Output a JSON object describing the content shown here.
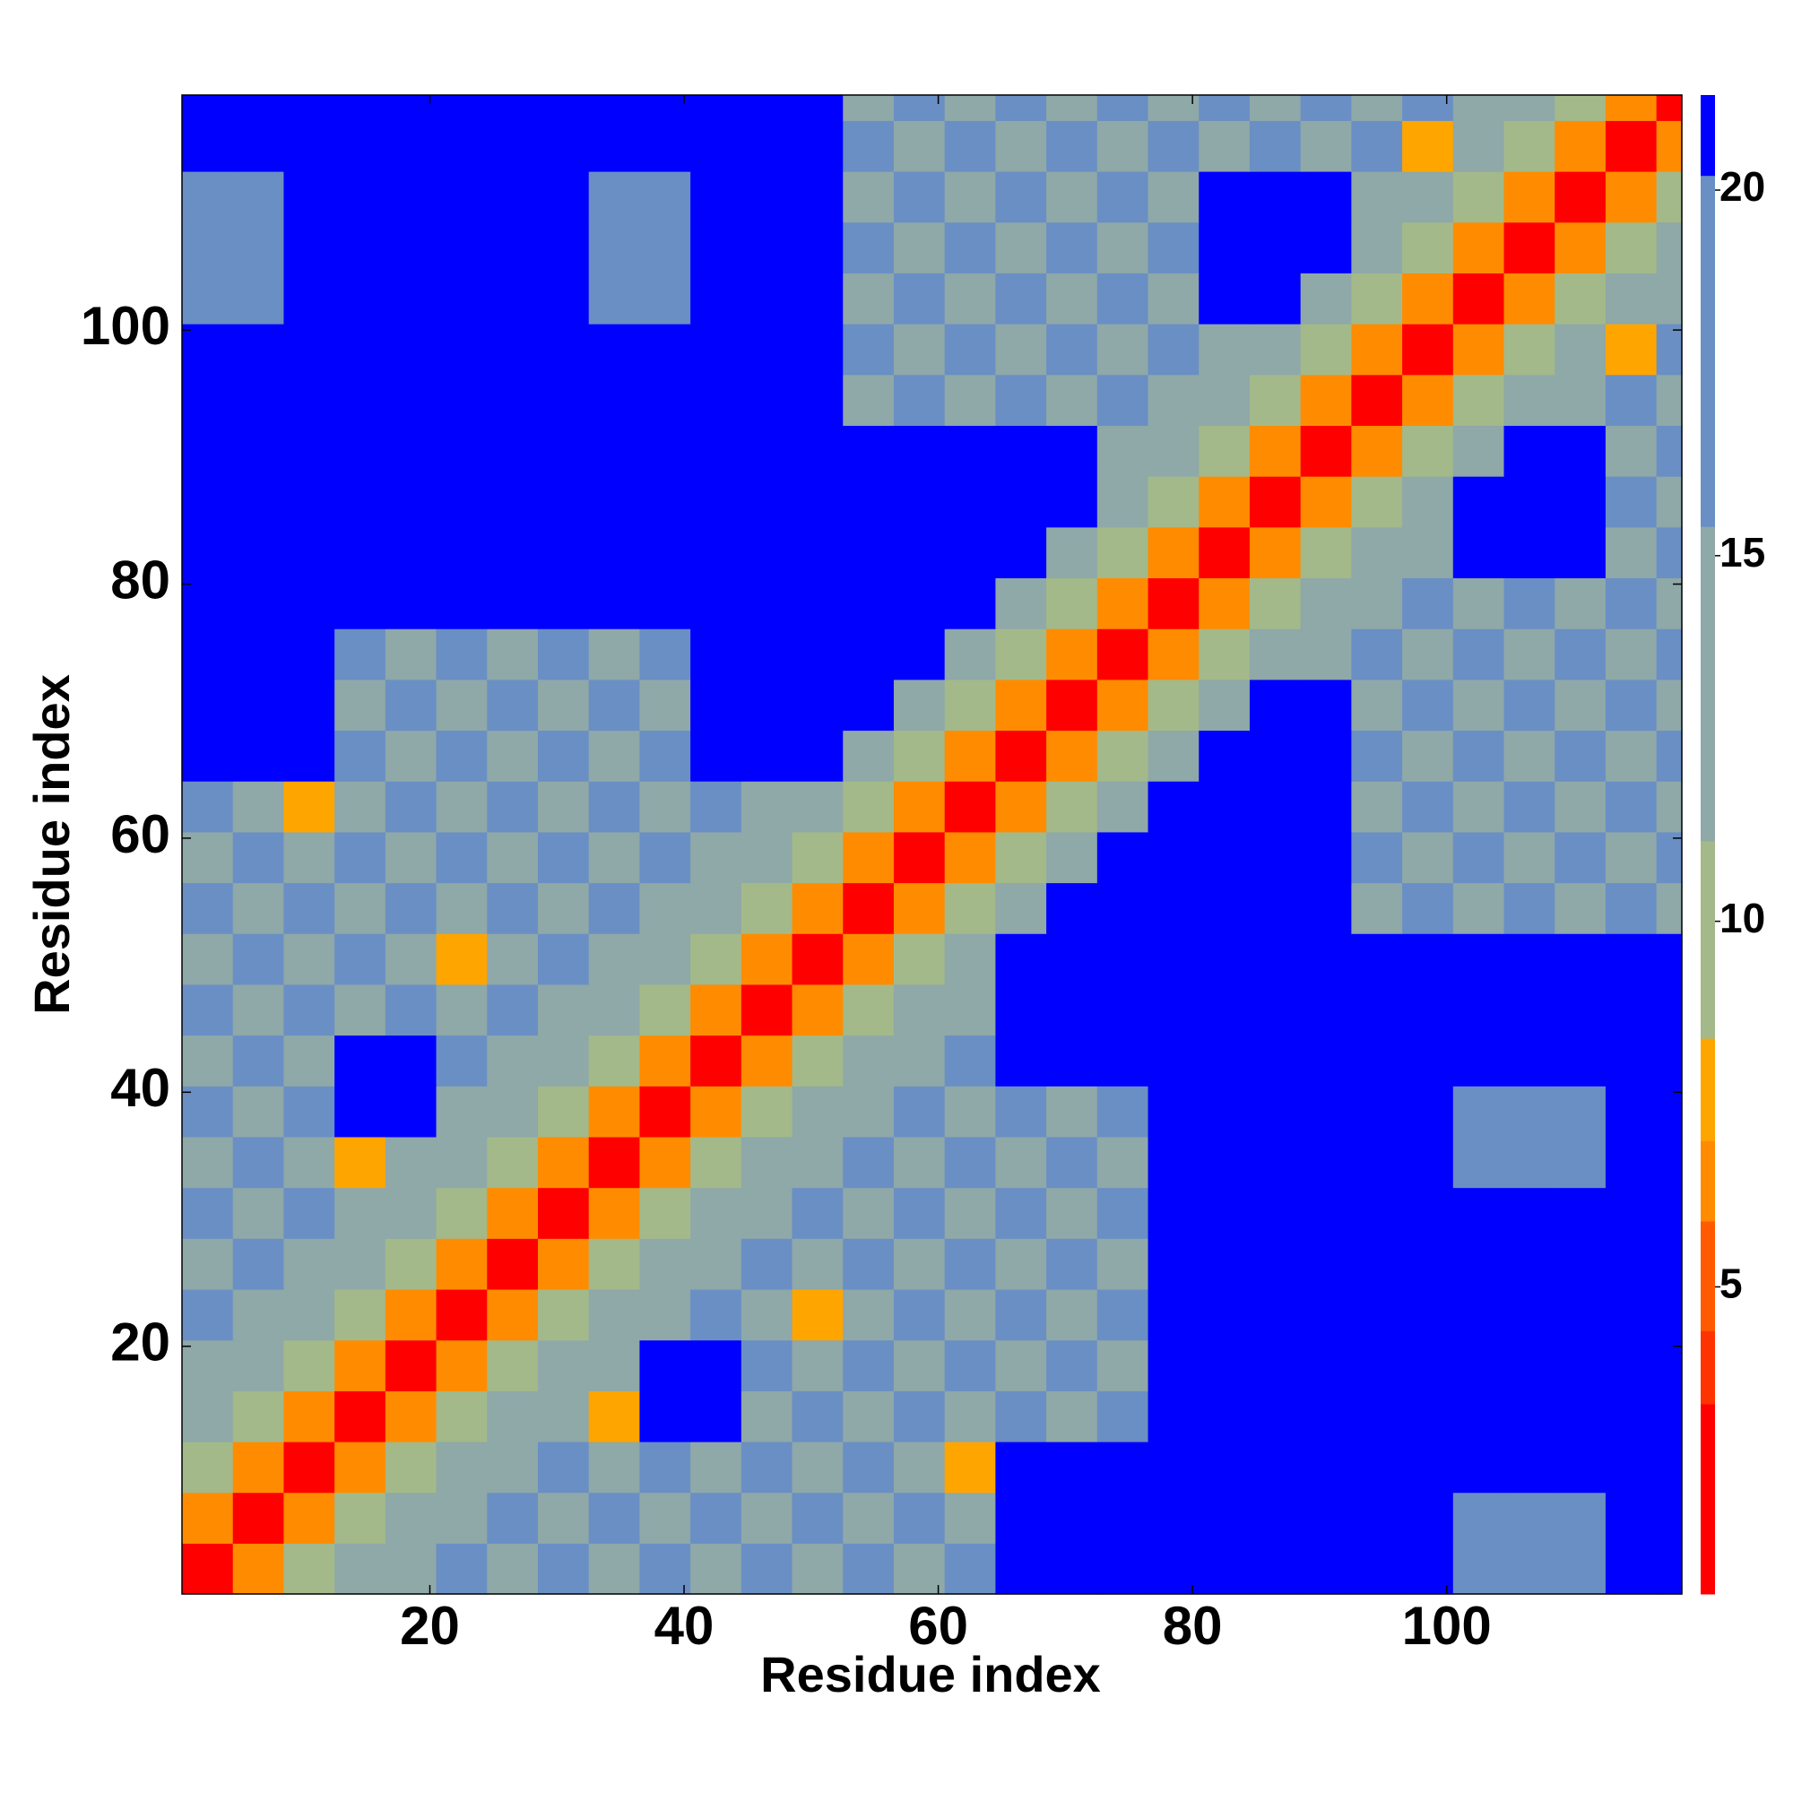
{
  "chart_data": {
    "type": "heatmap",
    "xlabel": "Residue index",
    "ylabel": "Residue index",
    "xlim": [
      0.5,
      118.5
    ],
    "ylim": [
      0.5,
      118.5
    ],
    "xticks": [
      20,
      40,
      60,
      80,
      100
    ],
    "yticks": [
      20,
      40,
      60,
      80,
      100
    ],
    "x_edges": [
      0.5,
      4.5,
      8.5,
      12.5,
      16.5,
      20.5,
      24.5,
      28.5,
      32.5,
      36.5,
      40.5,
      44.5,
      48.5,
      52.5,
      56.5,
      60.5,
      64.5,
      68.5,
      72.5,
      76.5,
      80.5,
      84.5,
      88.5,
      92.5,
      96.5,
      100.5,
      104.5,
      108.5,
      112.5,
      116.5,
      118.5
    ],
    "y_edges": [
      0.5,
      4.5,
      8.5,
      12.5,
      16.5,
      20.5,
      24.5,
      28.5,
      32.5,
      36.5,
      40.5,
      44.5,
      48.5,
      52.5,
      56.5,
      60.5,
      64.5,
      68.5,
      72.5,
      76.5,
      80.5,
      84.5,
      88.5,
      92.5,
      96.5,
      100.5,
      104.5,
      108.5,
      112.5,
      116.5,
      118.5
    ],
    "z": [
      [
        2,
        6,
        10,
        13,
        15,
        17,
        15,
        17,
        15,
        17,
        15,
        17,
        15,
        17,
        15,
        17,
        21,
        21,
        21,
        21,
        21,
        21,
        21,
        21,
        21,
        18,
        18,
        18,
        21,
        21
      ],
      [
        6,
        2,
        6,
        10,
        13,
        15,
        17,
        15,
        17,
        15,
        17,
        15,
        17,
        15,
        17,
        15,
        21,
        21,
        21,
        21,
        21,
        21,
        21,
        21,
        21,
        18,
        18,
        18,
        21,
        21
      ],
      [
        10,
        6,
        2,
        6,
        10,
        13,
        15,
        17,
        15,
        17,
        15,
        17,
        15,
        17,
        15,
        8,
        21,
        21,
        21,
        21,
        21,
        21,
        21,
        21,
        21,
        21,
        21,
        21,
        21,
        21
      ],
      [
        13,
        10,
        6,
        2,
        6,
        10,
        13,
        15,
        8,
        21,
        21,
        15,
        17,
        15,
        17,
        15,
        17,
        15,
        17,
        21,
        21,
        21,
        21,
        21,
        21,
        21,
        21,
        21,
        21,
        21
      ],
      [
        15,
        13,
        10,
        6,
        2,
        6,
        10,
        13,
        15,
        21,
        21,
        17,
        15,
        17,
        15,
        17,
        15,
        17,
        15,
        21,
        21,
        21,
        21,
        21,
        21,
        21,
        21,
        21,
        21,
        21
      ],
      [
        17,
        15,
        13,
        10,
        6,
        2,
        6,
        10,
        13,
        15,
        17,
        15,
        8,
        15,
        17,
        15,
        17,
        15,
        17,
        21,
        21,
        21,
        21,
        21,
        21,
        21,
        21,
        21,
        21,
        21
      ],
      [
        15,
        17,
        15,
        13,
        10,
        6,
        2,
        6,
        10,
        13,
        15,
        17,
        15,
        17,
        15,
        17,
        15,
        17,
        15,
        21,
        21,
        21,
        21,
        21,
        21,
        21,
        21,
        21,
        21,
        21
      ],
      [
        17,
        15,
        17,
        15,
        13,
        10,
        6,
        2,
        6,
        10,
        13,
        15,
        17,
        15,
        17,
        15,
        17,
        15,
        17,
        21,
        21,
        21,
        21,
        21,
        21,
        21,
        21,
        21,
        21,
        21
      ],
      [
        15,
        17,
        15,
        8,
        15,
        13,
        10,
        6,
        2,
        6,
        10,
        13,
        15,
        17,
        15,
        17,
        15,
        17,
        15,
        21,
        21,
        21,
        21,
        21,
        21,
        16,
        16,
        16,
        21,
        21
      ],
      [
        17,
        15,
        17,
        21,
        21,
        15,
        13,
        10,
        6,
        2,
        6,
        10,
        13,
        15,
        17,
        15,
        17,
        15,
        17,
        21,
        21,
        21,
        21,
        21,
        21,
        16,
        16,
        16,
        21,
        21
      ],
      [
        15,
        17,
        15,
        21,
        21,
        17,
        15,
        13,
        10,
        6,
        2,
        6,
        10,
        13,
        15,
        17,
        21,
        21,
        21,
        21,
        21,
        21,
        21,
        21,
        21,
        21,
        21,
        21,
        21,
        21
      ],
      [
        17,
        15,
        17,
        15,
        17,
        15,
        17,
        15,
        13,
        10,
        6,
        2,
        6,
        10,
        13,
        15,
        21,
        21,
        21,
        21,
        21,
        21,
        21,
        21,
        21,
        21,
        21,
        21,
        21,
        21
      ],
      [
        15,
        17,
        15,
        17,
        15,
        8,
        15,
        17,
        15,
        13,
        10,
        6,
        2,
        6,
        10,
        13,
        21,
        21,
        21,
        21,
        21,
        21,
        21,
        21,
        21,
        21,
        21,
        21,
        21,
        21
      ],
      [
        17,
        15,
        17,
        15,
        17,
        15,
        17,
        15,
        17,
        15,
        13,
        10,
        6,
        2,
        6,
        10,
        13,
        21,
        21,
        21,
        21,
        21,
        21,
        15,
        17,
        15,
        17,
        15,
        17,
        15
      ],
      [
        15,
        17,
        15,
        17,
        15,
        17,
        15,
        17,
        15,
        17,
        15,
        13,
        10,
        6,
        2,
        6,
        10,
        13,
        21,
        21,
        21,
        21,
        21,
        17,
        15,
        17,
        15,
        17,
        15,
        17
      ],
      [
        17,
        15,
        8,
        15,
        17,
        15,
        17,
        15,
        17,
        15,
        17,
        15,
        13,
        10,
        6,
        2,
        6,
        10,
        13,
        21,
        21,
        21,
        21,
        15,
        17,
        15,
        17,
        15,
        17,
        15
      ],
      [
        21,
        21,
        21,
        17,
        15,
        17,
        15,
        17,
        15,
        17,
        21,
        21,
        21,
        13,
        10,
        6,
        2,
        6,
        10,
        13,
        21,
        21,
        21,
        17,
        15,
        17,
        15,
        17,
        15,
        17
      ],
      [
        21,
        21,
        21,
        15,
        17,
        15,
        17,
        15,
        17,
        15,
        21,
        21,
        21,
        21,
        13,
        10,
        6,
        2,
        6,
        10,
        13,
        21,
        21,
        15,
        17,
        15,
        17,
        15,
        17,
        15
      ],
      [
        21,
        21,
        21,
        17,
        15,
        17,
        15,
        17,
        15,
        17,
        21,
        21,
        21,
        21,
        21,
        13,
        10,
        6,
        2,
        6,
        10,
        13,
        15,
        17,
        15,
        17,
        15,
        17,
        15,
        17
      ],
      [
        21,
        21,
        21,
        21,
        21,
        21,
        21,
        21,
        21,
        21,
        21,
        21,
        21,
        21,
        21,
        21,
        13,
        10,
        6,
        2,
        6,
        10,
        13,
        15,
        17,
        15,
        17,
        15,
        17,
        15
      ],
      [
        21,
        21,
        21,
        21,
        21,
        21,
        21,
        21,
        21,
        21,
        21,
        21,
        21,
        21,
        21,
        21,
        21,
        13,
        10,
        6,
        2,
        6,
        10,
        13,
        15,
        21,
        21,
        21,
        15,
        17
      ],
      [
        21,
        21,
        21,
        21,
        21,
        21,
        21,
        21,
        21,
        21,
        21,
        21,
        21,
        21,
        21,
        21,
        21,
        21,
        13,
        10,
        6,
        2,
        6,
        10,
        13,
        21,
        21,
        21,
        17,
        15
      ],
      [
        21,
        21,
        21,
        21,
        21,
        21,
        21,
        21,
        21,
        21,
        21,
        21,
        21,
        21,
        21,
        21,
        21,
        21,
        15,
        13,
        10,
        6,
        2,
        6,
        10,
        13,
        21,
        21,
        15,
        17
      ],
      [
        21,
        21,
        21,
        21,
        21,
        21,
        21,
        21,
        21,
        21,
        21,
        21,
        21,
        15,
        17,
        15,
        17,
        15,
        17,
        15,
        13,
        10,
        6,
        2,
        6,
        10,
        13,
        15,
        17,
        15
      ],
      [
        21,
        21,
        21,
        21,
        21,
        21,
        21,
        21,
        21,
        21,
        21,
        21,
        21,
        17,
        15,
        17,
        15,
        17,
        15,
        17,
        15,
        13,
        10,
        6,
        2,
        6,
        10,
        13,
        8,
        17
      ],
      [
        18,
        18,
        21,
        21,
        21,
        21,
        21,
        21,
        16,
        16,
        21,
        21,
        21,
        15,
        17,
        15,
        17,
        15,
        17,
        15,
        21,
        21,
        13,
        10,
        6,
        2,
        6,
        10,
        13,
        15
      ],
      [
        18,
        18,
        21,
        21,
        21,
        21,
        21,
        21,
        16,
        16,
        21,
        21,
        21,
        17,
        15,
        17,
        15,
        17,
        15,
        17,
        21,
        21,
        21,
        13,
        10,
        6,
        2,
        6,
        10,
        13
      ],
      [
        18,
        18,
        21,
        21,
        21,
        21,
        21,
        21,
        16,
        16,
        21,
        21,
        21,
        15,
        17,
        15,
        17,
        15,
        17,
        15,
        21,
        21,
        21,
        15,
        13,
        10,
        6,
        2,
        6,
        10
      ],
      [
        21,
        21,
        21,
        21,
        21,
        21,
        21,
        21,
        21,
        21,
        21,
        21,
        21,
        17,
        15,
        17,
        15,
        17,
        15,
        17,
        15,
        17,
        15,
        17,
        8,
        13,
        10,
        6,
        2,
        6
      ],
      [
        21,
        21,
        21,
        21,
        21,
        21,
        21,
        21,
        21,
        21,
        21,
        21,
        21,
        15,
        17,
        15,
        17,
        15,
        17,
        15,
        17,
        15,
        17,
        15,
        17,
        15,
        13,
        10,
        6,
        2
      ]
    ],
    "colorbar": {
      "lim": [
        0.8,
        21.3
      ],
      "ticks": [
        5,
        10,
        15,
        20
      ],
      "levels": [
        0.8,
        3.4,
        4.4,
        5.9,
        7,
        8.4,
        11.1,
        15.4,
        20.2,
        21.3
      ],
      "colors": [
        "#ff0000",
        "#ff3300",
        "#ff5a00",
        "#ff8c00",
        "#ffa500",
        "#a3b98a",
        "#8fa8a8",
        "#6a8fc4",
        "#0000ff"
      ]
    }
  }
}
